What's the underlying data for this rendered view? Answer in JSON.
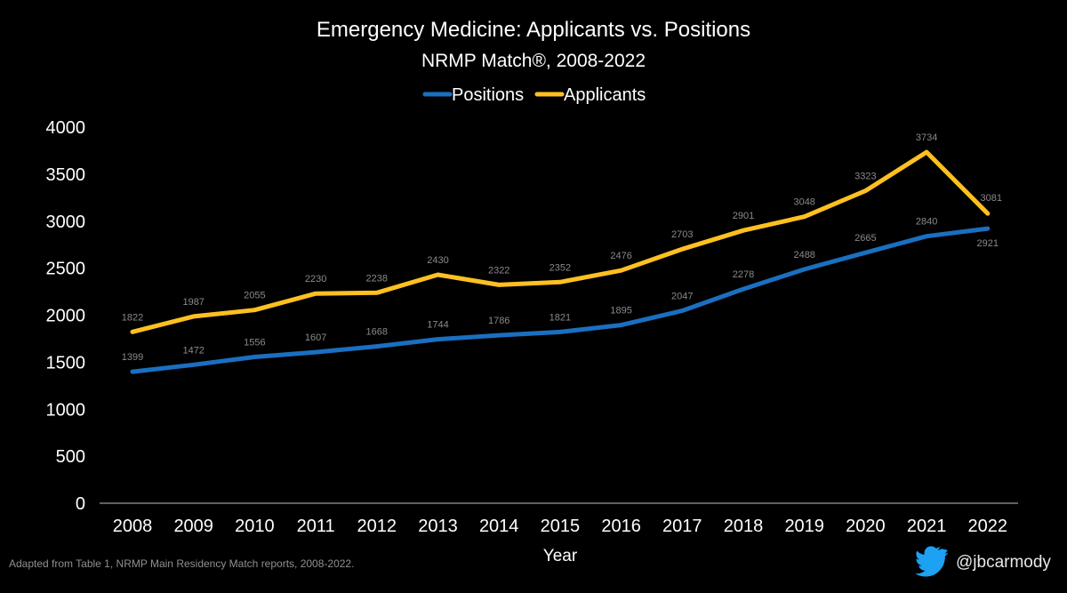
{
  "chart_data": {
    "type": "line",
    "title": "Emergency Medicine: Applicants vs. Positions",
    "subtitle": "NRMP Match®, 2008-2022",
    "xlabel": "Year",
    "ylabel": "",
    "ylim": [
      0,
      4000
    ],
    "yticks": [
      0,
      500,
      1000,
      1500,
      2000,
      2500,
      3000,
      3500,
      4000
    ],
    "categories": [
      "2008",
      "2009",
      "2010",
      "2011",
      "2012",
      "2013",
      "2014",
      "2015",
      "2016",
      "2017",
      "2018",
      "2019",
      "2020",
      "2021",
      "2022"
    ],
    "legend_position": "top-center",
    "grid": false,
    "series": [
      {
        "name": "Positions",
        "color": "#1A6FC0",
        "values": [
          1399,
          1472,
          1556,
          1607,
          1668,
          1744,
          1786,
          1821,
          1895,
          2047,
          2278,
          2488,
          2665,
          2840,
          2921
        ]
      },
      {
        "name": "Applicants",
        "color": "#FFC020",
        "values": [
          1822,
          1987,
          2055,
          2230,
          2238,
          2430,
          2322,
          2352,
          2476,
          2703,
          2901,
          3048,
          3323,
          3734,
          3081
        ]
      }
    ]
  },
  "footer": {
    "source": "Adapted from Table 1, NRMP Main Residency Match reports, 2008-2022.",
    "handle": "@jbcarmody",
    "icon": "twitter-bird-icon",
    "icon_color": "#1DA1F2"
  }
}
